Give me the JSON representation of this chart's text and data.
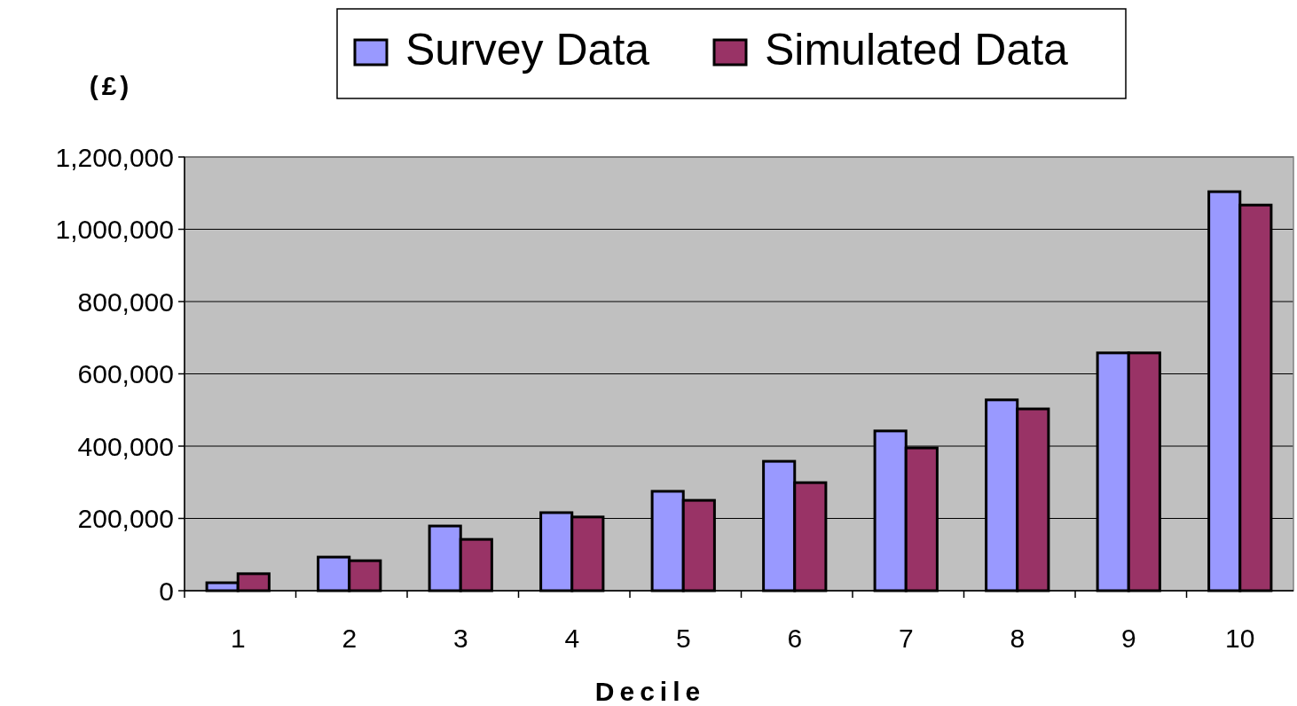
{
  "chart_data": {
    "type": "bar",
    "ylabel": "(£)",
    "xlabel": "Decile",
    "categories": [
      "1",
      "2",
      "3",
      "4",
      "5",
      "6",
      "7",
      "8",
      "9",
      "10"
    ],
    "series": [
      {
        "name": "Survey Data",
        "color": "#9999ff",
        "values": [
          22000,
          93000,
          179000,
          216000,
          275000,
          358000,
          442000,
          528000,
          658000,
          1104000
        ]
      },
      {
        "name": "Simulated Data",
        "color": "#993366",
        "values": [
          47000,
          83000,
          142000,
          204000,
          250000,
          299000,
          395000,
          503000,
          658000,
          1067000
        ]
      }
    ],
    "ylim": [
      0,
      1200000
    ],
    "yticks": [
      {
        "value": 0,
        "label": "0"
      },
      {
        "value": 200000,
        "label": "200,000"
      },
      {
        "value": 400000,
        "label": "400,000"
      },
      {
        "value": 600000,
        "label": "600,000"
      },
      {
        "value": 800000,
        "label": "800,000"
      },
      {
        "value": 1000000,
        "label": "1,000,000"
      },
      {
        "value": 1200000,
        "label": "1,200,000"
      }
    ],
    "grid": "y",
    "legend": "top"
  }
}
